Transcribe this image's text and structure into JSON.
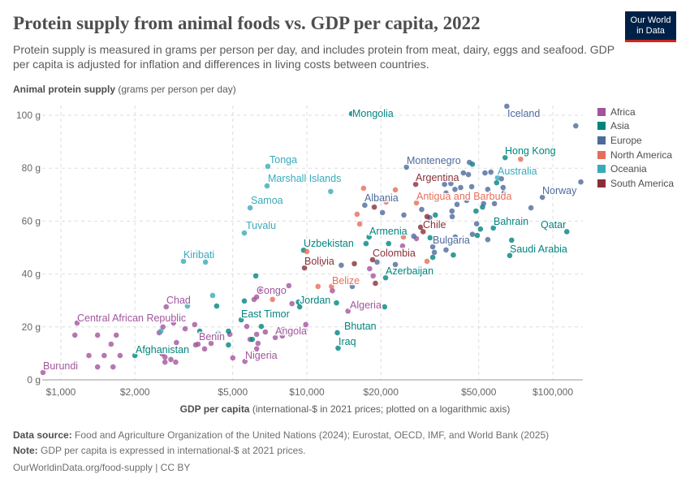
{
  "header": {
    "title": "Protein supply from animal foods vs. GDP per capita, 2022",
    "subtitle": "Protein supply is measured in grams per person per day, and includes protein from meat, dairy, eggs and seafood. GDP per capita is adjusted for inflation and differences in living costs between countries.",
    "logo_line1": "Our World",
    "logo_line2": "in Data"
  },
  "footer": {
    "source_label": "Data source:",
    "source_text": " Food and Agriculture Organization of the United Nations (2024); Eurostat, OECD, IMF, and World Bank (2025)",
    "note_label": "Note:",
    "note_text": " GDP per capita is expressed in international-$ at 2021 prices.",
    "credit": "OurWorldinData.org/food-supply | CC BY"
  },
  "chart_data": {
    "type": "scatter",
    "title": "Protein supply from animal foods vs. GDP per capita, 2022",
    "xlabel_bold": "GDP per capita",
    "xlabel_rest": " (international-$ in 2021 prices; plotted on a logarithmic axis)",
    "ylabel_bold": "Animal protein supply",
    "ylabel_rest": " (grams per person per day)",
    "x_scale": "log",
    "xlim": [
      850,
      130000
    ],
    "ylim": [
      0,
      105
    ],
    "x_ticks": [
      {
        "v": 1000,
        "label": "$1,000"
      },
      {
        "v": 2000,
        "label": "$2,000"
      },
      {
        "v": 5000,
        "label": "$5,000"
      },
      {
        "v": 10000,
        "label": "$10,000"
      },
      {
        "v": 20000,
        "label": "$20,000"
      },
      {
        "v": 50000,
        "label": "$50,000"
      },
      {
        "v": 100000,
        "label": "$100,000"
      }
    ],
    "y_ticks": [
      {
        "v": 0,
        "label": "0 g"
      },
      {
        "v": 20,
        "label": "20 g"
      },
      {
        "v": 40,
        "label": "40 g"
      },
      {
        "v": 60,
        "label": "60 g"
      },
      {
        "v": 80,
        "label": "80 g"
      },
      {
        "v": 100,
        "label": "100 g"
      }
    ],
    "grid": true,
    "legend_position": "right",
    "regions": [
      {
        "name": "Africa",
        "color": "#a2559c"
      },
      {
        "name": "Asia",
        "color": "#00847e"
      },
      {
        "name": "Europe",
        "color": "#4c6a9c"
      },
      {
        "name": "North America",
        "color": "#e56e5a"
      },
      {
        "name": "Oceania",
        "color": "#38aaba"
      },
      {
        "name": "South America",
        "color": "#883039"
      }
    ],
    "points": [
      {
        "label": "Burundi",
        "r": "Africa",
        "x": 846,
        "y": 2.8
      },
      {
        "label": "Central African Republic",
        "r": "Africa",
        "x": 1164,
        "y": 21.5
      },
      {
        "label": "Chad",
        "r": "Africa",
        "x": 2680,
        "y": 27.6
      },
      {
        "label": "Congo",
        "r": "Africa",
        "x": 6250,
        "y": 31.3
      },
      {
        "label": "Nigeria",
        "r": "Africa",
        "x": 5600,
        "y": 7
      },
      {
        "label": "Benin",
        "r": "Africa",
        "x": 3610,
        "y": 13.5
      },
      {
        "label": "Angola",
        "r": "Africa",
        "x": 7440,
        "y": 16
      },
      {
        "label": "Algeria",
        "r": "Africa",
        "x": 14700,
        "y": 26
      },
      {
        "r": "Africa",
        "x": 1140,
        "y": 16.9
      },
      {
        "r": "Africa",
        "x": 1300,
        "y": 9.2
      },
      {
        "r": "Africa",
        "x": 1410,
        "y": 16.9
      },
      {
        "r": "Africa",
        "x": 1500,
        "y": 9.2
      },
      {
        "r": "Africa",
        "x": 1600,
        "y": 13.5
      },
      {
        "r": "Africa",
        "x": 1680,
        "y": 16.9
      },
      {
        "r": "Africa",
        "x": 1740,
        "y": 9.2
      },
      {
        "r": "Africa",
        "x": 1410,
        "y": 4.9
      },
      {
        "r": "Africa",
        "x": 1630,
        "y": 4.9
      },
      {
        "r": "Africa",
        "x": 2510,
        "y": 17.8
      },
      {
        "r": "Africa",
        "x": 2600,
        "y": 20
      },
      {
        "r": "Africa",
        "x": 2870,
        "y": 21.5
      },
      {
        "r": "Africa",
        "x": 3200,
        "y": 19.3
      },
      {
        "r": "Africa",
        "x": 3500,
        "y": 20.9
      },
      {
        "r": "Africa",
        "x": 2580,
        "y": 9.8
      },
      {
        "r": "Africa",
        "x": 2650,
        "y": 8.6
      },
      {
        "r": "Africa",
        "x": 2800,
        "y": 7.7
      },
      {
        "r": "Africa",
        "x": 2650,
        "y": 6.7
      },
      {
        "r": "Africa",
        "x": 2930,
        "y": 6.7
      },
      {
        "r": "Africa",
        "x": 2950,
        "y": 14.1
      },
      {
        "r": "Africa",
        "x": 3530,
        "y": 13.2
      },
      {
        "r": "Africa",
        "x": 3840,
        "y": 11.7
      },
      {
        "r": "Africa",
        "x": 4080,
        "y": 13.8
      },
      {
        "r": "Africa",
        "x": 4860,
        "y": 17.2
      },
      {
        "r": "Africa",
        "x": 5700,
        "y": 20.2
      },
      {
        "r": "Africa",
        "x": 5880,
        "y": 15.3
      },
      {
        "r": "Africa",
        "x": 6250,
        "y": 17.2
      },
      {
        "r": "Africa",
        "x": 6330,
        "y": 13.8
      },
      {
        "r": "Africa",
        "x": 6250,
        "y": 11.7
      },
      {
        "r": "Africa",
        "x": 6780,
        "y": 18.1
      },
      {
        "r": "Africa",
        "x": 6100,
        "y": 30.4
      },
      {
        "r": "Africa",
        "x": 6530,
        "y": 34
      },
      {
        "r": "Africa",
        "x": 8450,
        "y": 35.6
      },
      {
        "r": "Africa",
        "x": 8700,
        "y": 28.8
      },
      {
        "r": "Africa",
        "x": 7950,
        "y": 16.6
      },
      {
        "r": "Africa",
        "x": 9900,
        "y": 20.9
      },
      {
        "r": "Africa",
        "x": 9800,
        "y": 18.7
      },
      {
        "r": "Africa",
        "x": 8000,
        "y": 19
      },
      {
        "r": "Africa",
        "x": 12700,
        "y": 33.7
      },
      {
        "r": "Africa",
        "x": 18600,
        "y": 39.3
      },
      {
        "r": "Africa",
        "x": 18000,
        "y": 42
      },
      {
        "r": "Africa",
        "x": 24500,
        "y": 50.6
      },
      {
        "r": "Africa",
        "x": 27900,
        "y": 53.4
      },
      {
        "r": "Africa",
        "x": 5000,
        "y": 8.3
      },
      {
        "label": "Afghanistan",
        "r": "Asia",
        "x": 2000,
        "y": 9.2
      },
      {
        "label": "East Timor",
        "r": "Asia",
        "x": 5410,
        "y": 22.7
      },
      {
        "label": "Jordan",
        "r": "Asia",
        "x": 9350,
        "y": 27.6
      },
      {
        "label": "Mongolia",
        "r": "Asia",
        "x": 15200,
        "y": 100.6
      },
      {
        "label": "Hong Kong",
        "r": "Asia",
        "x": 64000,
        "y": 84
      },
      {
        "label": "Uzbekistan",
        "r": "Asia",
        "x": 9700,
        "y": 49
      },
      {
        "label": "Armenia",
        "r": "Asia",
        "x": 17900,
        "y": 54
      },
      {
        "label": "Azerbaijan",
        "r": "Asia",
        "x": 20900,
        "y": 38.6
      },
      {
        "label": "Bhutan",
        "r": "Asia",
        "x": 13300,
        "y": 17.8
      },
      {
        "label": "Iraq",
        "r": "Asia",
        "x": 13400,
        "y": 12
      },
      {
        "label": "Bahrain",
        "r": "Asia",
        "x": 57300,
        "y": 57.4
      },
      {
        "label": "Qatar",
        "r": "Asia",
        "x": 114000,
        "y": 56
      },
      {
        "label": "Saudi Arabia",
        "r": "Asia",
        "x": 66800,
        "y": 47
      },
      {
        "r": "Asia",
        "x": 3670,
        "y": 18.4
      },
      {
        "r": "Asia",
        "x": 4360,
        "y": 17.5
      },
      {
        "r": "Asia",
        "x": 4800,
        "y": 13.2
      },
      {
        "r": "Asia",
        "x": 5570,
        "y": 29.8
      },
      {
        "r": "Asia",
        "x": 6200,
        "y": 39.3
      },
      {
        "r": "Asia",
        "x": 4300,
        "y": 27.9
      },
      {
        "r": "Asia",
        "x": 4800,
        "y": 18.4
      },
      {
        "r": "Asia",
        "x": 6530,
        "y": 20.2
      },
      {
        "r": "Asia",
        "x": 6000,
        "y": 15.3
      },
      {
        "r": "Asia",
        "x": 9240,
        "y": 29.4
      },
      {
        "r": "Asia",
        "x": 13200,
        "y": 29.1
      },
      {
        "r": "Asia",
        "x": 20700,
        "y": 27.6
      },
      {
        "r": "Asia",
        "x": 17400,
        "y": 51.5
      },
      {
        "r": "Asia",
        "x": 21500,
        "y": 51.5
      },
      {
        "r": "Asia",
        "x": 33300,
        "y": 62.3
      },
      {
        "r": "Asia",
        "x": 31700,
        "y": 53.7
      },
      {
        "r": "Asia",
        "x": 32500,
        "y": 46.3
      },
      {
        "r": "Asia",
        "x": 39400,
        "y": 47.2
      },
      {
        "r": "Asia",
        "x": 48700,
        "y": 63.8
      },
      {
        "r": "Asia",
        "x": 51800,
        "y": 65.3
      },
      {
        "r": "Asia",
        "x": 50800,
        "y": 57
      },
      {
        "r": "Asia",
        "x": 49300,
        "y": 54.6
      },
      {
        "r": "Asia",
        "x": 59100,
        "y": 74.5
      },
      {
        "r": "Asia",
        "x": 47100,
        "y": 81.5
      },
      {
        "r": "Asia",
        "x": 68000,
        "y": 52.8
      },
      {
        "label": "Iceland",
        "r": "Europe",
        "x": 65000,
        "y": 103.4
      },
      {
        "label": "Montenegro",
        "r": "Europe",
        "x": 25400,
        "y": 80.4
      },
      {
        "label": "Norway",
        "r": "Europe",
        "x": 90700,
        "y": 69
      },
      {
        "label": "Albania",
        "r": "Europe",
        "x": 17200,
        "y": 66
      },
      {
        "label": "Bulgaria",
        "r": "Europe",
        "x": 32500,
        "y": 50.3
      },
      {
        "r": "Europe",
        "x": 124000,
        "y": 96
      },
      {
        "r": "Europe",
        "x": 130000,
        "y": 74.8
      },
      {
        "r": "Europe",
        "x": 81500,
        "y": 65
      },
      {
        "r": "Europe",
        "x": 57900,
        "y": 66.6
      },
      {
        "r": "Europe",
        "x": 45800,
        "y": 82.2
      },
      {
        "r": "Europe",
        "x": 43300,
        "y": 78.2
      },
      {
        "r": "Europe",
        "x": 38500,
        "y": 74.2
      },
      {
        "r": "Europe",
        "x": 36300,
        "y": 73.9
      },
      {
        "r": "Europe",
        "x": 40000,
        "y": 72
      },
      {
        "r": "Europe",
        "x": 42200,
        "y": 72.7
      },
      {
        "r": "Europe",
        "x": 45400,
        "y": 77.6
      },
      {
        "r": "Europe",
        "x": 53000,
        "y": 78.2
      },
      {
        "r": "Europe",
        "x": 56000,
        "y": 78.5
      },
      {
        "r": "Europe",
        "x": 54400,
        "y": 72
      },
      {
        "r": "Europe",
        "x": 61800,
        "y": 76
      },
      {
        "r": "Europe",
        "x": 63300,
        "y": 70.6
      },
      {
        "r": "Europe",
        "x": 52300,
        "y": 66.6
      },
      {
        "r": "Europe",
        "x": 44600,
        "y": 67.8
      },
      {
        "r": "Europe",
        "x": 36800,
        "y": 70.6
      },
      {
        "r": "Europe",
        "x": 38900,
        "y": 63.8
      },
      {
        "r": "Europe",
        "x": 40800,
        "y": 66.3
      },
      {
        "r": "Europe",
        "x": 29300,
        "y": 64.4
      },
      {
        "r": "Europe",
        "x": 20300,
        "y": 63.2
      },
      {
        "r": "Europe",
        "x": 24800,
        "y": 62.3
      },
      {
        "r": "Europe",
        "x": 31600,
        "y": 61.3
      },
      {
        "r": "Europe",
        "x": 39000,
        "y": 61.7
      },
      {
        "r": "Europe",
        "x": 40100,
        "y": 54
      },
      {
        "r": "Europe",
        "x": 47100,
        "y": 55
      },
      {
        "r": "Europe",
        "x": 54400,
        "y": 53
      },
      {
        "r": "Europe",
        "x": 49000,
        "y": 59
      },
      {
        "r": "Europe",
        "x": 27200,
        "y": 54.3
      },
      {
        "r": "Europe",
        "x": 22900,
        "y": 43.6
      },
      {
        "r": "Europe",
        "x": 13800,
        "y": 43.3
      },
      {
        "r": "Europe",
        "x": 15300,
        "y": 35.3
      },
      {
        "r": "Europe",
        "x": 13900,
        "y": 37.4
      },
      {
        "r": "Europe",
        "x": 19300,
        "y": 44.5
      },
      {
        "r": "Europe",
        "x": 33000,
        "y": 48.2
      },
      {
        "r": "Europe",
        "x": 36800,
        "y": 49.1
      },
      {
        "r": "Europe",
        "x": 46800,
        "y": 73
      },
      {
        "r": "Europe",
        "x": 62800,
        "y": 72.7
      },
      {
        "label": "Antigua and Barbuda",
        "r": "North America",
        "x": 27900,
        "y": 66.9
      },
      {
        "label": "Belize",
        "r": "North America",
        "x": 12600,
        "y": 35.3
      },
      {
        "r": "North America",
        "x": 16400,
        "y": 58.9
      },
      {
        "r": "North America",
        "x": 16000,
        "y": 62.6
      },
      {
        "r": "North America",
        "x": 17000,
        "y": 72.4
      },
      {
        "r": "North America",
        "x": 22900,
        "y": 71.8
      },
      {
        "r": "North America",
        "x": 21000,
        "y": 67.2
      },
      {
        "r": "North America",
        "x": 24700,
        "y": 54
      },
      {
        "r": "North America",
        "x": 30800,
        "y": 44.8
      },
      {
        "r": "North America",
        "x": 10000,
        "y": 48.5
      },
      {
        "r": "North America",
        "x": 11100,
        "y": 35.3
      },
      {
        "r": "North America",
        "x": 7250,
        "y": 30.4
      },
      {
        "r": "North America",
        "x": 74000,
        "y": 83.4
      },
      {
        "label": "Tonga",
        "r": "Oceania",
        "x": 6940,
        "y": 80.7
      },
      {
        "label": "Marshall Islands",
        "r": "Oceania",
        "x": 6890,
        "y": 73.3
      },
      {
        "label": "Samoa",
        "r": "Oceania",
        "x": 5880,
        "y": 65
      },
      {
        "label": "Tuvalu",
        "r": "Oceania",
        "x": 5570,
        "y": 55.5
      },
      {
        "label": "Kiribati",
        "r": "Oceania",
        "x": 3150,
        "y": 44.8
      },
      {
        "r": "Oceania",
        "x": 3870,
        "y": 44.5
      },
      {
        "label": "Australia",
        "r": "Oceania",
        "x": 59600,
        "y": 76.4
      },
      {
        "r": "Oceania",
        "x": 12500,
        "y": 71.2
      },
      {
        "r": "Oceania",
        "x": 4140,
        "y": 31.9
      },
      {
        "r": "Oceania",
        "x": 3270,
        "y": 27.9
      },
      {
        "r": "Oceania",
        "x": 2550,
        "y": 18.4
      },
      {
        "label": "Argentina",
        "r": "South America",
        "x": 27700,
        "y": 73.9
      },
      {
        "label": "Colombia",
        "r": "South America",
        "x": 18500,
        "y": 45.4
      },
      {
        "label": "Bolivia",
        "r": "South America",
        "x": 9780,
        "y": 42.3
      },
      {
        "label": "Chile",
        "r": "South America",
        "x": 29700,
        "y": 56
      },
      {
        "r": "South America",
        "x": 18800,
        "y": 65.3
      },
      {
        "r": "South America",
        "x": 30800,
        "y": 61.7
      },
      {
        "r": "South America",
        "x": 29000,
        "y": 57.7
      },
      {
        "r": "South America",
        "x": 19000,
        "y": 36.5
      },
      {
        "r": "South America",
        "x": 15600,
        "y": 43.9
      },
      {
        "r": "South America",
        "x": 11500,
        "y": 43.9
      }
    ]
  }
}
